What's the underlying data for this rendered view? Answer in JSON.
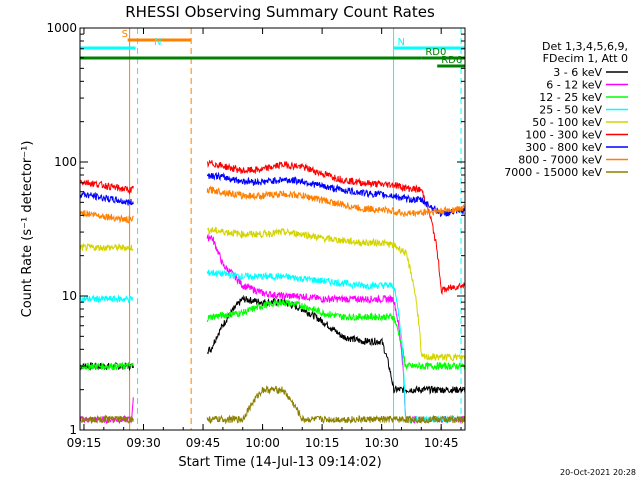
{
  "chart_data": {
    "type": "line",
    "title": "RHESSI Observing Summary Count Rates",
    "xlabel": "Start Time (14-Jul-13 09:14:02)",
    "ylabel": "Count Rate (s⁻¹ detector⁻¹)",
    "y_scale": "log",
    "ylim": [
      1,
      1000
    ],
    "xlim": [
      "09:14",
      "10:51"
    ],
    "x_ticks": [
      "09:15",
      "09:30",
      "09:45",
      "10:00",
      "10:15",
      "10:30",
      "10:45"
    ],
    "y_ticks": [
      "1",
      "10",
      "100",
      "1000"
    ],
    "legend_header": [
      "Det 1,3,4,5,6,9,",
      "FDecim 1, Att 0"
    ],
    "legend_position": "right",
    "series": [
      {
        "name": "3 - 6 keV",
        "color": "#000000",
        "x": [
          "09:14",
          "09:26",
          "09:27",
          "09:47",
          "09:55",
          "10:00",
          "10:05",
          "10:10",
          "10:15",
          "10:20",
          "10:25",
          "10:30",
          "10:33",
          "10:36",
          "10:40",
          "10:45",
          "10:50"
        ],
        "y": [
          3.0,
          3.0,
          3.0,
          4.0,
          9.5,
          9.0,
          9.0,
          8.0,
          6.5,
          5.0,
          4.6,
          4.6,
          2.0,
          2.0,
          2.0,
          2.0,
          2.0
        ]
      },
      {
        "name": "6 - 12 keV",
        "color": "#ff00ff",
        "x": [
          "09:14",
          "09:26",
          "09:27",
          "09:47",
          "09:50",
          "09:55",
          "10:00",
          "10:05",
          "10:10",
          "10:15",
          "10:20",
          "10:25",
          "10:30",
          "10:33",
          "10:36",
          "10:40",
          "10:45",
          "10:50"
        ],
        "y": [
          1.2,
          1.2,
          1.2,
          28,
          17,
          12,
          10.5,
          10,
          10,
          9.5,
          9.5,
          9.5,
          9.5,
          9.5,
          1.2,
          1.2,
          1.2,
          1.2
        ]
      },
      {
        "name": "12 - 25 keV",
        "color": "#00ff00",
        "x": [
          "09:14",
          "09:26",
          "09:27",
          "09:47",
          "09:55",
          "10:00",
          "10:05",
          "10:10",
          "10:15",
          "10:20",
          "10:25",
          "10:30",
          "10:33",
          "10:36",
          "10:40",
          "10:45",
          "10:50"
        ],
        "y": [
          3.0,
          3.0,
          3.0,
          7.0,
          7.5,
          8.5,
          9.0,
          8.5,
          7.5,
          7.0,
          7.0,
          7.0,
          7.0,
          3.0,
          3.0,
          3.0,
          3.0
        ]
      },
      {
        "name": "25 - 50 keV",
        "color": "#00ffff",
        "x": [
          "09:14",
          "09:26",
          "09:27",
          "09:47",
          "09:55",
          "10:00",
          "10:05",
          "10:10",
          "10:15",
          "10:20",
          "10:25",
          "10:30",
          "10:33",
          "10:36",
          "10:40",
          "10:45",
          "10:50"
        ],
        "y": [
          9.5,
          9.5,
          9.5,
          15,
          14,
          14,
          14,
          13.5,
          13,
          12.5,
          12,
          12,
          12,
          1.2,
          1.2,
          1.2,
          1.2
        ]
      },
      {
        "name": "50 - 100 keV",
        "color": "#d4d400",
        "x": [
          "09:14",
          "09:26",
          "09:27",
          "09:47",
          "09:55",
          "10:00",
          "10:05",
          "10:10",
          "10:15",
          "10:20",
          "10:25",
          "10:30",
          "10:33",
          "10:36",
          "10:40",
          "10:45",
          "10:50"
        ],
        "y": [
          23,
          23,
          23,
          31,
          29,
          29,
          30,
          29,
          27,
          26,
          25,
          25,
          24,
          21,
          3.5,
          3.5,
          3.5
        ]
      },
      {
        "name": "100 - 300 keV",
        "color": "#ff0000",
        "x": [
          "09:14",
          "09:26",
          "09:27",
          "09:47",
          "09:55",
          "10:00",
          "10:05",
          "10:10",
          "10:15",
          "10:20",
          "10:25",
          "10:30",
          "10:33",
          "10:36",
          "10:40",
          "10:45",
          "10:50"
        ],
        "y": [
          72,
          62,
          62,
          98,
          86,
          88,
          96,
          92,
          82,
          74,
          70,
          68,
          68,
          64,
          62,
          11,
          12
        ]
      },
      {
        "name": "300 - 800 keV",
        "color": "#0000ff",
        "x": [
          "09:14",
          "09:26",
          "09:27",
          "09:47",
          "09:55",
          "10:00",
          "10:05",
          "10:10",
          "10:15",
          "10:20",
          "10:25",
          "10:30",
          "10:33",
          "10:36",
          "10:40",
          "10:45",
          "10:50"
        ],
        "y": [
          58,
          50,
          50,
          80,
          72,
          71,
          74,
          72,
          66,
          62,
          59,
          57,
          56,
          53,
          52,
          41,
          43
        ]
      },
      {
        "name": "800 - 7000 keV",
        "color": "#ff8000",
        "x": [
          "09:14",
          "09:26",
          "09:27",
          "09:47",
          "09:55",
          "10:00",
          "10:05",
          "10:10",
          "10:15",
          "10:20",
          "10:25",
          "10:30",
          "10:33",
          "10:36",
          "10:40",
          "10:45",
          "10:50"
        ],
        "y": [
          42,
          37,
          37,
          62,
          56,
          56,
          58,
          56,
          52,
          48,
          45,
          44,
          43,
          41,
          42,
          43,
          45
        ]
      },
      {
        "name": "7000 - 15000 keV",
        "color": "#8b8000",
        "x": [
          "09:14",
          "09:26",
          "09:27",
          "09:47",
          "09:55",
          "10:00",
          "10:05",
          "10:10",
          "10:15",
          "10:20",
          "10:25",
          "10:30",
          "10:33",
          "10:36",
          "10:40",
          "10:45",
          "10:50"
        ],
        "y": [
          1.2,
          1.2,
          1.2,
          1.2,
          1.2,
          2.0,
          2.0,
          1.2,
          1.2,
          1.2,
          1.2,
          1.2,
          1.2,
          1.2,
          1.2,
          1.2,
          1.2
        ]
      }
    ],
    "flag_bars": [
      {
        "label": "S",
        "color": "#ff8000",
        "start": "09:26",
        "end": "09:42"
      },
      {
        "label": "N",
        "color": "#00ffff",
        "start": "09:14",
        "end": "09:28"
      },
      {
        "label": "N",
        "color": "#00ffff",
        "start": "10:33",
        "end": "10:51"
      },
      {
        "label": "",
        "color": "#008000",
        "start": "09:14",
        "end": "10:40"
      },
      {
        "label": "RD0",
        "color": "#008000",
        "start": "10:40",
        "end": "10:51"
      },
      {
        "label": "RD6",
        "color": "#008000",
        "start": "10:44",
        "end": "10:51"
      }
    ],
    "vlines": [
      {
        "time": "09:26.5",
        "color": "#ff8000",
        "style": "solid"
      },
      {
        "time": "09:28.5",
        "color": "#00ffff",
        "style": "dashed"
      },
      {
        "time": "09:42",
        "color": "#ff8000",
        "style": "dashed"
      },
      {
        "time": "10:33",
        "color": "#00ffff",
        "style": "solid"
      },
      {
        "time": "10:50",
        "color": "#00ffff",
        "style": "dashed"
      }
    ]
  },
  "footer": {
    "stamp": "20-Oct-2021 20:28"
  }
}
